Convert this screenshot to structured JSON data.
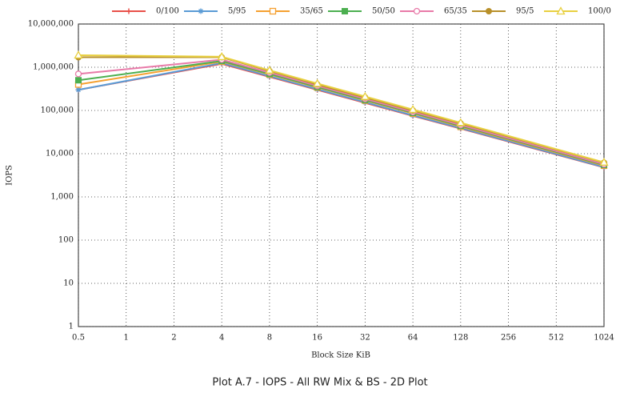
{
  "chart_data": {
    "type": "line",
    "caption": "Plot A.7 - IOPS - All RW Mix & BS - 2D Plot",
    "xlabel": "Block Size KiB",
    "ylabel": "IOPS",
    "xscale": "log2",
    "yscale": "log",
    "grid": true,
    "legend": "top",
    "x": [
      0.5,
      4,
      8,
      16,
      32,
      64,
      128,
      1024
    ],
    "xlim": [
      0.5,
      1024
    ],
    "xticks": [
      0.5,
      1,
      2,
      4,
      8,
      16,
      32,
      64,
      128,
      256,
      512,
      1024
    ],
    "ylim": [
      1,
      10000000
    ],
    "yticks": [
      1,
      10,
      100,
      {
        "value": 1000,
        "label": "1,000"
      },
      {
        "value": 10000,
        "label": "10,000"
      },
      {
        "value": 100000,
        "label": "100,000"
      },
      {
        "value": 1000000,
        "label": "1,000,000"
      },
      {
        "value": 10000000,
        "label": "10,000,000"
      }
    ],
    "series": [
      {
        "name": "0/100",
        "color": "#e8504a",
        "marker": "plus",
        "values": [
          300000,
          1200000,
          600000,
          300000,
          150000,
          75000,
          38000,
          4800
        ]
      },
      {
        "name": "5/95",
        "color": "#5a9bd5",
        "marker": "star",
        "values": [
          300000,
          1250000,
          620000,
          310000,
          155000,
          77000,
          39000,
          4900
        ]
      },
      {
        "name": "35/65",
        "color": "#f5a030",
        "marker": "open-square",
        "values": [
          400000,
          1350000,
          680000,
          340000,
          170000,
          85000,
          42000,
          5300
        ]
      },
      {
        "name": "50/50",
        "color": "#4caf50",
        "marker": "square",
        "values": [
          500000,
          1400000,
          700000,
          350000,
          175000,
          88000,
          44000,
          5500
        ]
      },
      {
        "name": "65/35",
        "color": "#e87aa8",
        "marker": "open-circle",
        "values": [
          700000,
          1500000,
          750000,
          370000,
          185000,
          92000,
          46000,
          5700
        ]
      },
      {
        "name": "95/5",
        "color": "#b8902a",
        "marker": "circle",
        "values": [
          1700000,
          1700000,
          820000,
          400000,
          200000,
          100000,
          50000,
          6200
        ]
      },
      {
        "name": "100/0",
        "color": "#e8d040",
        "marker": "open-triangle",
        "values": [
          1900000,
          1750000,
          850000,
          420000,
          210000,
          105000,
          52000,
          6300
        ]
      }
    ]
  }
}
